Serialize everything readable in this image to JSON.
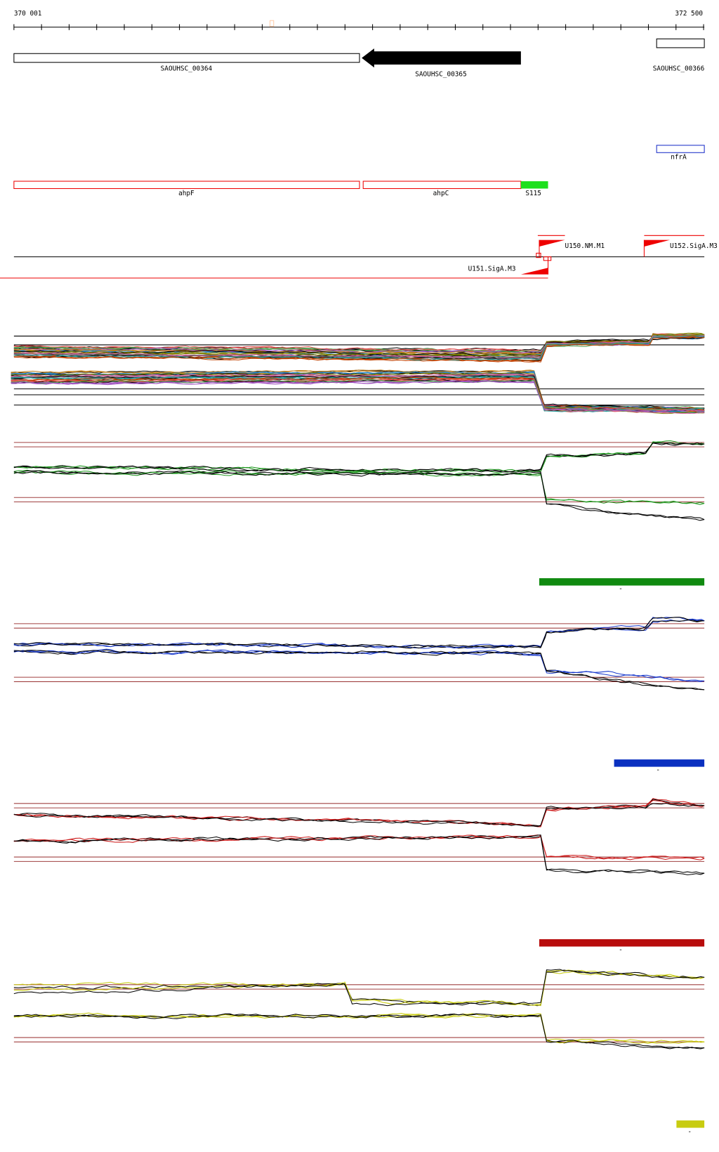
{
  "ruler": {
    "start": "370 001",
    "end": "372 500"
  },
  "genes": [
    {
      "label": "SAOUHSC_00364"
    },
    {
      "label": "SAOUHSC_00365"
    },
    {
      "label": "SAOUHSC_00366"
    }
  ],
  "other_gene": {
    "label": "nfrA"
  },
  "features": [
    {
      "label": "ahpF"
    },
    {
      "label": "ahpC"
    },
    {
      "label": "S115"
    }
  ],
  "promoters": [
    {
      "label": "U150.NM.M1"
    },
    {
      "label": "U152.SigA.M3"
    },
    {
      "label": "U151.SigA.M3"
    }
  ],
  "panels": [
    {
      "legend": "-"
    },
    {
      "legend": "-"
    },
    {
      "legend": "-"
    },
    {
      "legend": "-"
    }
  ]
}
